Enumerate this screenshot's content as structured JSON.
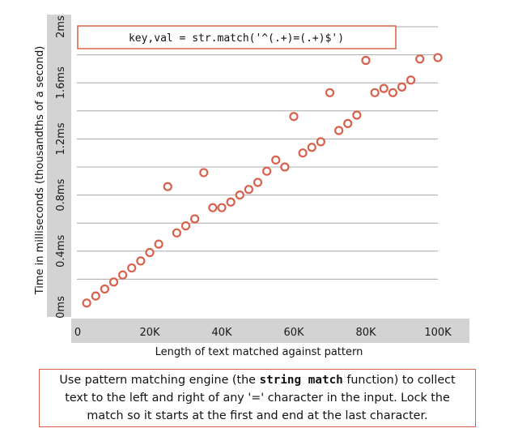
{
  "chart_data": {
    "type": "scatter",
    "xlabel": "Length of text matched against pattern",
    "ylabel": "Time in milliseconds (thousandths of a second)",
    "xlim": [
      0,
      107000
    ],
    "ylim": [
      0,
      2.0
    ],
    "x_ticks": [
      {
        "value": 0,
        "label": "0"
      },
      {
        "value": 20000,
        "label": "20K"
      },
      {
        "value": 40000,
        "label": "40K"
      },
      {
        "value": 60000,
        "label": "60K"
      },
      {
        "value": 80000,
        "label": "80K"
      },
      {
        "value": 100000,
        "label": "100K"
      }
    ],
    "y_ticks": [
      {
        "value": 0,
        "label": "0ms"
      },
      {
        "value": 0.4,
        "label": "0.4ms"
      },
      {
        "value": 0.8,
        "label": "0.8ms"
      },
      {
        "value": 1.2,
        "label": "1.2ms"
      },
      {
        "value": 1.6,
        "label": "1.6ms"
      },
      {
        "value": 2.0,
        "label": "2ms"
      }
    ],
    "gridlines": [
      0.2,
      0.4,
      0.6,
      0.8,
      1.0,
      1.2,
      1.4,
      1.6,
      1.8,
      2.0
    ],
    "grid": true,
    "marker_color": "#d9614c",
    "points": [
      {
        "x": 2500,
        "y": 0.03
      },
      {
        "x": 5000,
        "y": 0.08
      },
      {
        "x": 7500,
        "y": 0.13
      },
      {
        "x": 10000,
        "y": 0.18
      },
      {
        "x": 12500,
        "y": 0.23
      },
      {
        "x": 15000,
        "y": 0.28
      },
      {
        "x": 17500,
        "y": 0.33
      },
      {
        "x": 20000,
        "y": 0.39
      },
      {
        "x": 22500,
        "y": 0.45
      },
      {
        "x": 25000,
        "y": 0.86
      },
      {
        "x": 27500,
        "y": 0.53
      },
      {
        "x": 30000,
        "y": 0.58
      },
      {
        "x": 32500,
        "y": 0.63
      },
      {
        "x": 35000,
        "y": 0.96
      },
      {
        "x": 37500,
        "y": 0.71
      },
      {
        "x": 40000,
        "y": 0.71
      },
      {
        "x": 42500,
        "y": 0.75
      },
      {
        "x": 45000,
        "y": 0.8
      },
      {
        "x": 47500,
        "y": 0.84
      },
      {
        "x": 50000,
        "y": 0.89
      },
      {
        "x": 52500,
        "y": 0.97
      },
      {
        "x": 55000,
        "y": 1.05
      },
      {
        "x": 57500,
        "y": 1.0
      },
      {
        "x": 60000,
        "y": 1.36
      },
      {
        "x": 62500,
        "y": 1.1
      },
      {
        "x": 65000,
        "y": 1.14
      },
      {
        "x": 67500,
        "y": 1.18
      },
      {
        "x": 70000,
        "y": 1.53
      },
      {
        "x": 72500,
        "y": 1.26
      },
      {
        "x": 75000,
        "y": 1.31
      },
      {
        "x": 77500,
        "y": 1.37
      },
      {
        "x": 80000,
        "y": 1.76
      },
      {
        "x": 82500,
        "y": 1.53
      },
      {
        "x": 85000,
        "y": 1.56
      },
      {
        "x": 87500,
        "y": 1.53
      },
      {
        "x": 90000,
        "y": 1.57
      },
      {
        "x": 92500,
        "y": 1.62
      },
      {
        "x": 95000,
        "y": 1.77
      },
      {
        "x": 100000,
        "y": 1.78
      }
    ]
  },
  "code_snippet": "key,val = str.match('^(.+)=(.+)$')",
  "caption": {
    "part1": "Use pattern matching engine (the ",
    "code": "string match",
    "part2": " function) to collect text to the left and right of any '=' character in the input. Lock the match so it starts at the first and end at the last character."
  }
}
